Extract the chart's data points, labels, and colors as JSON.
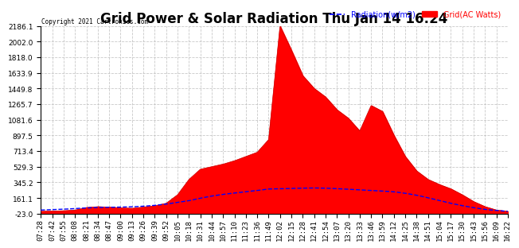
{
  "title": "Grid Power & Solar Radiation Thu Jan 14 16:24",
  "copyright": "Copyright 2021 Cartronics.com",
  "legend_radiation": "Radiation(w/m2)",
  "legend_grid": "Grid(AC Watts)",
  "ymin": -23.0,
  "ymax": 2186.1,
  "yticks": [
    2186.1,
    2002.0,
    1818.0,
    1633.9,
    1449.8,
    1265.7,
    1081.6,
    897.5,
    713.4,
    529.3,
    345.2,
    161.1,
    -23.0
  ],
  "xtick_labels": [
    "07:28",
    "07:42",
    "07:55",
    "08:08",
    "08:21",
    "08:34",
    "08:47",
    "09:00",
    "09:13",
    "09:26",
    "09:39",
    "09:52",
    "10:05",
    "10:18",
    "10:31",
    "10:44",
    "10:57",
    "11:10",
    "11:23",
    "11:36",
    "11:49",
    "12:02",
    "12:15",
    "12:28",
    "12:41",
    "12:54",
    "13:07",
    "13:20",
    "13:33",
    "13:46",
    "13:59",
    "14:12",
    "14:25",
    "14:38",
    "14:51",
    "15:04",
    "15:17",
    "15:30",
    "15:43",
    "15:56",
    "16:09",
    "16:22"
  ],
  "grid_color": "#ff0000",
  "radiation_color": "#0000ff",
  "background_color": "#ffffff",
  "plot_background": "#ffffff",
  "title_fontsize": 12,
  "tick_fontsize": 6.5,
  "grid_power": [
    5,
    8,
    12,
    20,
    50,
    60,
    55,
    45,
    40,
    55,
    70,
    100,
    200,
    380,
    500,
    530,
    560,
    600,
    650,
    700,
    850,
    2186,
    1900,
    1600,
    1450,
    1350,
    1200,
    1100,
    950,
    1250,
    1180,
    900,
    650,
    480,
    380,
    320,
    270,
    200,
    120,
    60,
    20,
    5
  ],
  "radiation": [
    20,
    25,
    30,
    38,
    45,
    50,
    52,
    55,
    58,
    65,
    75,
    90,
    110,
    130,
    160,
    185,
    205,
    220,
    235,
    250,
    268,
    270,
    275,
    278,
    280,
    278,
    272,
    265,
    258,
    252,
    245,
    235,
    218,
    195,
    165,
    132,
    100,
    72,
    48,
    28,
    15,
    5
  ]
}
